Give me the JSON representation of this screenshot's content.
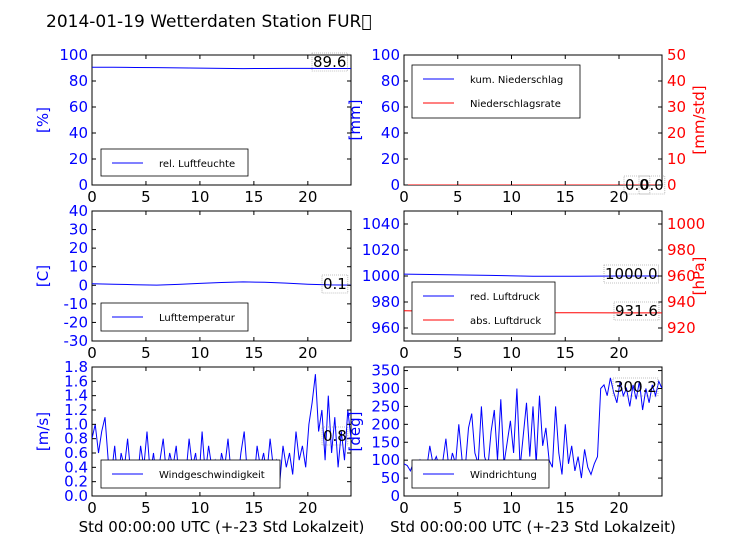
{
  "title": "2014-01-19 Wetterdaten Station FUR\u0000",
  "colors": {
    "primary": "#0000ff",
    "secondary": "#ff0000",
    "axis": "#000000",
    "background": "#ffffff"
  },
  "chart_data": [
    {
      "id": "humidity",
      "type": "line",
      "xlabel": "",
      "ylabel": "[%]",
      "ylim": [
        0,
        100
      ],
      "yticks": [
        0,
        20,
        40,
        60,
        80,
        100
      ],
      "xlim": [
        0,
        24
      ],
      "xticks": [
        0,
        5,
        10,
        15,
        20
      ],
      "series": [
        {
          "name": "rel. Luftfeuchte",
          "color": "#0000ff",
          "x": [
            0,
            2,
            4,
            6,
            8,
            10,
            12,
            14,
            16,
            18,
            20,
            22,
            24
          ],
          "values": [
            90.5,
            90.6,
            90.4,
            90.3,
            90.1,
            89.9,
            89.7,
            89.5,
            89.6,
            89.7,
            89.7,
            89.6,
            89.6
          ]
        }
      ],
      "annotation": "89.6",
      "legend_position": "lower left"
    },
    {
      "id": "precipitation",
      "type": "line",
      "xlabel": "",
      "ylabel": "[mm]",
      "ylim": [
        0,
        100
      ],
      "yticks": [
        0,
        20,
        40,
        60,
        80,
        100
      ],
      "y2label": "[mm/std]",
      "y2lim": [
        0,
        50
      ],
      "y2ticks": [
        0,
        10,
        20,
        30,
        40,
        50
      ],
      "xlim": [
        0,
        24
      ],
      "xticks": [
        0,
        5,
        10,
        15,
        20
      ],
      "series": [
        {
          "name": "kum. Niederschlag",
          "color": "#0000ff",
          "axis": "left",
          "x": [
            0,
            24
          ],
          "values": [
            0,
            0
          ]
        },
        {
          "name": "Niederschlagsrate",
          "color": "#ff0000",
          "axis": "right",
          "x": [
            0,
            24
          ],
          "values": [
            0,
            0
          ]
        }
      ],
      "annotations": [
        "0.0",
        "0.0"
      ],
      "legend_position": "upper left"
    },
    {
      "id": "temperature",
      "type": "line",
      "xlabel": "",
      "ylabel": "[C]",
      "ylim": [
        -30,
        40
      ],
      "yticks": [
        -30,
        -20,
        -10,
        0,
        10,
        20,
        30,
        40
      ],
      "xlim": [
        0,
        24
      ],
      "xticks": [
        0,
        5,
        10,
        15,
        20
      ],
      "series": [
        {
          "name": "Lufttemperatur",
          "color": "#0000ff",
          "x": [
            0,
            2,
            4,
            6,
            8,
            10,
            12,
            14,
            16,
            18,
            20,
            22,
            24
          ],
          "values": [
            0.8,
            0.6,
            0.3,
            0.1,
            0.5,
            1.0,
            1.5,
            1.8,
            1.6,
            1.2,
            0.6,
            0.2,
            0.1
          ]
        }
      ],
      "annotation": "0.1",
      "legend_position": "lower left"
    },
    {
      "id": "pressure",
      "type": "line",
      "xlabel": "",
      "ylabel": "",
      "ylim": [
        950,
        1050
      ],
      "yticks": [
        960,
        980,
        1000,
        1020,
        1040
      ],
      "y2label": "[hPa]",
      "y2lim": [
        910,
        1010
      ],
      "y2ticks": [
        920,
        940,
        960,
        980,
        1000
      ],
      "xlim": [
        0,
        24
      ],
      "xticks": [
        0,
        5,
        10,
        15,
        20
      ],
      "series": [
        {
          "name": "red. Luftdruck",
          "color": "#0000ff",
          "axis": "left",
          "x": [
            0,
            4,
            8,
            12,
            16,
            20,
            24
          ],
          "values": [
            1001.5,
            1001.0,
            1000.5,
            999.8,
            999.8,
            1000.0,
            1000.0
          ]
        },
        {
          "name": "abs. Luftdruck",
          "color": "#ff0000",
          "axis": "right",
          "x": [
            0,
            4,
            8,
            12,
            16,
            20,
            24
          ],
          "values": [
            933.2,
            932.8,
            932.4,
            931.8,
            931.7,
            931.6,
            931.6
          ]
        }
      ],
      "annotations": [
        "1000.0",
        "931.6"
      ],
      "legend_position": "lower left"
    },
    {
      "id": "windspeed",
      "type": "line",
      "xlabel": "Std 00:00:00 UTC (+-23 Std Lokalzeit)",
      "ylabel": "[m/s]",
      "ylim": [
        0,
        1.8
      ],
      "yticks": [
        0.0,
        0.2,
        0.4,
        0.6,
        0.8,
        1.0,
        1.2,
        1.4,
        1.6,
        1.8
      ],
      "xlim": [
        0,
        24
      ],
      "xticks": [
        0,
        5,
        10,
        15,
        20
      ],
      "series": [
        {
          "name": "Windgeschwindigkeit",
          "color": "#0000ff",
          "x": [
            0,
            0.3,
            0.6,
            0.9,
            1.2,
            1.5,
            1.8,
            2.1,
            2.4,
            2.7,
            3.0,
            3.3,
            3.6,
            3.9,
            4.2,
            4.5,
            4.8,
            5.1,
            5.4,
            5.7,
            6.0,
            6.3,
            6.6,
            6.9,
            7.2,
            7.5,
            7.8,
            8.1,
            8.4,
            8.7,
            9.0,
            9.3,
            9.6,
            9.9,
            10.2,
            10.5,
            10.8,
            11.1,
            11.4,
            11.7,
            12.0,
            12.3,
            12.6,
            12.9,
            13.2,
            13.5,
            13.8,
            14.1,
            14.4,
            14.7,
            15.0,
            15.3,
            15.6,
            15.9,
            16.2,
            16.5,
            16.8,
            17.1,
            17.4,
            17.7,
            18.0,
            18.3,
            18.6,
            18.9,
            19.2,
            19.5,
            19.8,
            20.1,
            20.4,
            20.7,
            21.0,
            21.3,
            21.6,
            21.9,
            22.2,
            22.5,
            22.8,
            23.1,
            23.4,
            23.7,
            24.0
          ],
          "values": [
            0.8,
            1.0,
            0.6,
            0.9,
            1.1,
            0.5,
            0.3,
            0.7,
            0.2,
            0.6,
            0.4,
            0.8,
            0.3,
            0.5,
            0.2,
            0.7,
            0.4,
            0.9,
            0.3,
            0.6,
            0.2,
            0.5,
            0.8,
            0.3,
            0.6,
            0.4,
            0.7,
            0.2,
            0.5,
            0.3,
            0.8,
            0.4,
            0.6,
            0.2,
            0.9,
            0.3,
            0.7,
            0.4,
            0.5,
            0.2,
            0.6,
            0.4,
            0.8,
            0.3,
            0.5,
            0.2,
            0.6,
            0.9,
            0.3,
            0.5,
            0.2,
            0.7,
            0.4,
            0.6,
            0.3,
            0.8,
            0.4,
            0.5,
            0.2,
            0.7,
            0.4,
            0.6,
            0.3,
            0.9,
            0.5,
            0.7,
            0.4,
            1.0,
            1.3,
            1.7,
            0.9,
            1.2,
            0.5,
            1.4,
            0.6,
            1.1,
            0.4,
            0.9,
            0.5,
            1.2,
            0.8
          ]
        }
      ],
      "annotation": "0.8",
      "legend_position": "lower center"
    },
    {
      "id": "winddirection",
      "type": "line",
      "xlabel": "Std 00:00:00 UTC (+-23 Std Lokalzeit)",
      "ylabel": "[deg]",
      "ylim": [
        0,
        360
      ],
      "yticks": [
        0,
        50,
        100,
        150,
        200,
        250,
        300,
        350
      ],
      "xlim": [
        0,
        24
      ],
      "xticks": [
        0,
        5,
        10,
        15,
        20
      ],
      "series": [
        {
          "name": "Windrichtung",
          "color": "#0000ff",
          "x": [
            0,
            0.3,
            0.6,
            0.9,
            1.2,
            1.5,
            1.8,
            2.1,
            2.4,
            2.7,
            3.0,
            3.3,
            3.6,
            3.9,
            4.2,
            4.5,
            4.8,
            5.1,
            5.4,
            5.7,
            6.0,
            6.3,
            6.6,
            6.9,
            7.2,
            7.5,
            7.8,
            8.1,
            8.4,
            8.7,
            9.0,
            9.3,
            9.6,
            9.9,
            10.2,
            10.5,
            10.8,
            11.1,
            11.4,
            11.7,
            12.0,
            12.3,
            12.6,
            12.9,
            13.2,
            13.5,
            13.8,
            14.1,
            14.4,
            14.7,
            15.0,
            15.3,
            15.6,
            15.9,
            16.2,
            16.5,
            16.8,
            17.1,
            17.4,
            17.7,
            18.0,
            18.3,
            18.6,
            18.9,
            19.2,
            19.5,
            19.8,
            20.1,
            20.4,
            20.7,
            21.0,
            21.3,
            21.6,
            21.9,
            22.2,
            22.5,
            22.8,
            23.1,
            23.4,
            23.7,
            24.0
          ],
          "values": [
            90,
            85,
            70,
            95,
            60,
            100,
            80,
            75,
            140,
            90,
            110,
            80,
            95,
            160,
            70,
            120,
            90,
            200,
            100,
            80,
            190,
            230,
            120,
            90,
            250,
            110,
            80,
            180,
            240,
            100,
            270,
            90,
            150,
            210,
            120,
            300,
            80,
            170,
            260,
            110,
            250,
            90,
            280,
            140,
            190,
            100,
            80,
            250,
            120,
            60,
            200,
            90,
            140,
            70,
            110,
            50,
            130,
            80,
            60,
            90,
            110,
            300,
            310,
            280,
            330,
            290,
            260,
            320,
            280,
            300,
            250,
            310,
            270,
            320,
            240,
            300,
            260,
            310,
            280,
            320,
            300
          ]
        }
      ],
      "annotation": "300.2",
      "legend_position": "lower center"
    }
  ]
}
